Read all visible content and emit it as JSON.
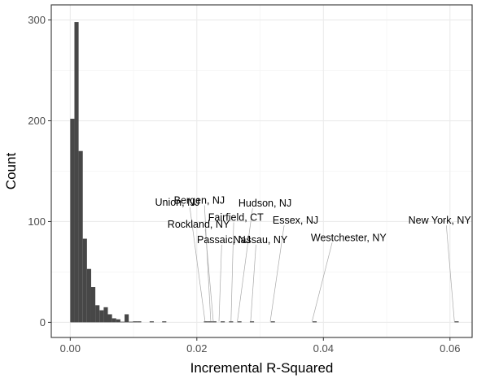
{
  "chart_data": {
    "type": "histogram",
    "title": "",
    "xlabel": "Incremental R-Squared",
    "ylabel": "Count",
    "xlim": [
      -0.003,
      0.0635
    ],
    "ylim": [
      -15,
      315
    ],
    "x_ticks": [
      0.0,
      0.02,
      0.04,
      0.06
    ],
    "x_tick_labels": [
      "0.00",
      "0.02",
      "0.04",
      "0.06"
    ],
    "y_ticks": [
      0,
      100,
      200,
      300
    ],
    "y_tick_labels": [
      "0",
      "100",
      "200",
      "300"
    ],
    "grid": true,
    "bin_width": 0.00066,
    "bins": [
      {
        "x": 0.0,
        "count": 202
      },
      {
        "x": 0.00066,
        "count": 298
      },
      {
        "x": 0.00132,
        "count": 170
      },
      {
        "x": 0.00198,
        "count": 83
      },
      {
        "x": 0.00264,
        "count": 53
      },
      {
        "x": 0.0033,
        "count": 35
      },
      {
        "x": 0.00396,
        "count": 17
      },
      {
        "x": 0.00462,
        "count": 12
      },
      {
        "x": 0.00528,
        "count": 15
      },
      {
        "x": 0.00594,
        "count": 8
      },
      {
        "x": 0.0066,
        "count": 4
      },
      {
        "x": 0.00726,
        "count": 3
      },
      {
        "x": 0.00792,
        "count": 0
      },
      {
        "x": 0.00858,
        "count": 8
      },
      {
        "x": 0.00924,
        "count": 0
      },
      {
        "x": 0.0099,
        "count": 1
      },
      {
        "x": 0.01056,
        "count": 1
      },
      {
        "x": 0.01254,
        "count": 1
      },
      {
        "x": 0.01452,
        "count": 1
      },
      {
        "x": 0.02112,
        "count": 1
      },
      {
        "x": 0.02178,
        "count": 1
      },
      {
        "x": 0.02244,
        "count": 1
      },
      {
        "x": 0.02376,
        "count": 1
      },
      {
        "x": 0.02508,
        "count": 1
      },
      {
        "x": 0.0264,
        "count": 1
      },
      {
        "x": 0.02838,
        "count": 1
      },
      {
        "x": 0.03168,
        "count": 1
      },
      {
        "x": 0.03828,
        "count": 1
      },
      {
        "x": 0.06072,
        "count": 1
      }
    ],
    "annotations": [
      {
        "label": "Union, NJ",
        "x": 0.0213,
        "y": 0,
        "label_y": 119
      },
      {
        "label": "Bergen, NJ",
        "x": 0.0222,
        "y": 0,
        "label_y": 121
      },
      {
        "label": "Rockland, NY",
        "x": 0.0226,
        "y": 0,
        "label_y": 97
      },
      {
        "label": "Passaic, NJ",
        "x": 0.0235,
        "y": 0,
        "label_y": 82
      },
      {
        "label": "Fairfield, CT",
        "x": 0.0254,
        "y": 0,
        "label_y": 104
      },
      {
        "label": "Hudson, NJ",
        "x": 0.0264,
        "y": 0,
        "label_y": 118
      },
      {
        "label": "Nassau, NY",
        "x": 0.0285,
        "y": 0,
        "label_y": 82
      },
      {
        "label": "Essex, NJ",
        "x": 0.0316,
        "y": 0,
        "label_y": 101
      },
      {
        "label": "Westchester, NY",
        "x": 0.0382,
        "y": 0,
        "label_y": 84
      },
      {
        "label": "New York, NY",
        "x": 0.0607,
        "y": 0,
        "label_y": 101
      }
    ],
    "colors": {
      "bar": "#474747",
      "grid_major": "#ebebeb",
      "grid_minor": "#f5f5f5",
      "panel_border": "#333333",
      "annot_line": "#a9a9a9"
    }
  }
}
